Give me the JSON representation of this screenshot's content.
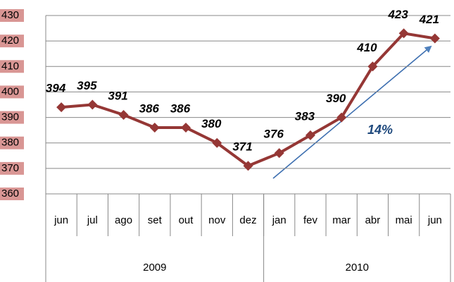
{
  "chart_data": {
    "type": "line",
    "category_groups": [
      {
        "label": "2009",
        "categories": [
          "jun",
          "jul",
          "ago",
          "set",
          "out",
          "nov",
          "dez"
        ]
      },
      {
        "label": "2010",
        "categories": [
          "jan",
          "fev",
          "mar",
          "abr",
          "mai",
          "jun"
        ]
      }
    ],
    "series": [
      {
        "name": "valor",
        "color": "#953735",
        "values": [
          394,
          395,
          391,
          386,
          386,
          380,
          371,
          376,
          383,
          390,
          410,
          423,
          421
        ]
      }
    ],
    "ylim": [
      360,
      430
    ],
    "yticks": [
      360,
      370,
      380,
      390,
      400,
      410,
      420,
      430
    ],
    "grid": true,
    "annotation": {
      "text": "14%",
      "color": "#1f497d"
    }
  }
}
